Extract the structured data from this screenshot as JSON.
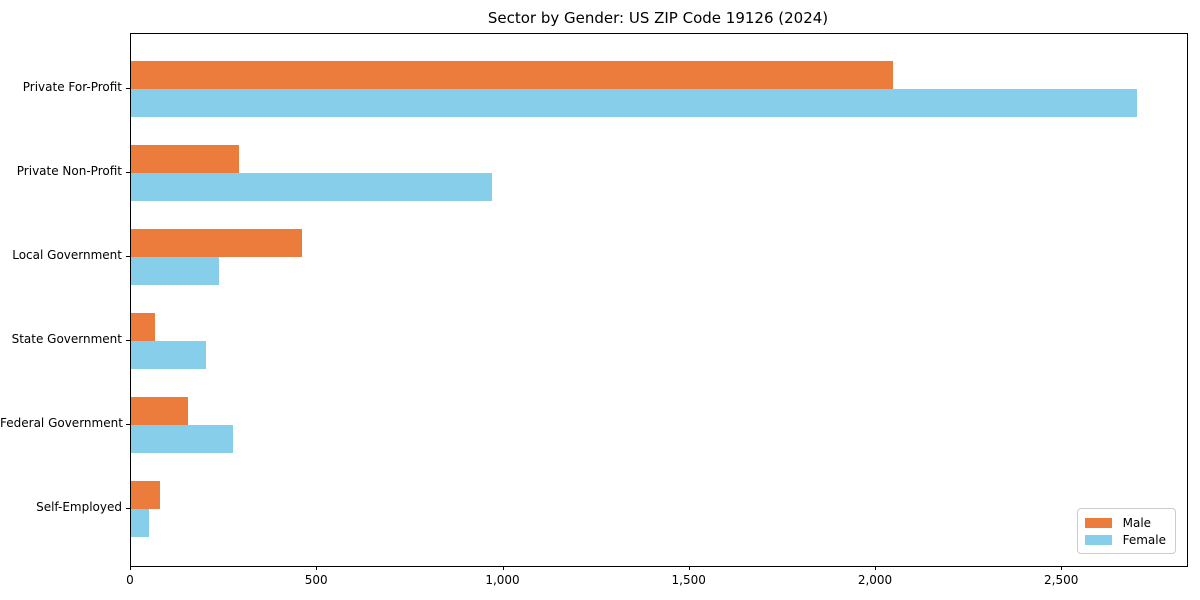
{
  "chart_data": {
    "type": "bar",
    "orientation": "horizontal",
    "title": "Sector by Gender: US ZIP Code 19126 (2024)",
    "xlabel": "",
    "ylabel": "",
    "categories": [
      "Private For-Profit",
      "Private Non-Profit",
      "Local Government",
      "State Government",
      "Federal Government",
      "Self-Employed"
    ],
    "series": [
      {
        "name": "Male",
        "color": "#EC7C3C",
        "values": [
          2045,
          290,
          460,
          63,
          153,
          78
        ]
      },
      {
        "name": "Female",
        "color": "#87CEEB",
        "values": [
          2700,
          970,
          237,
          200,
          274,
          47
        ]
      }
    ],
    "xlim": [
      0,
      2835
    ],
    "xticks": [
      0,
      500,
      1000,
      1500,
      2000,
      2500
    ],
    "xtick_labels": [
      "0",
      "500",
      "1,000",
      "1,500",
      "2,000",
      "2,500"
    ],
    "grid": false,
    "legend_position": "lower right"
  }
}
